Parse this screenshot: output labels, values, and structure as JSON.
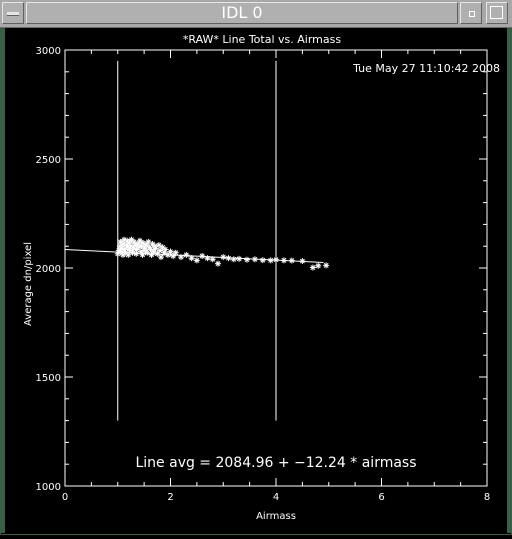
{
  "window": {
    "title": "IDL 0"
  },
  "chart_data": {
    "type": "scatter",
    "title": "*RAW* Line Total vs. Airmass",
    "timestamp": "Tue May 27 11:10:42 2008",
    "xlabel": "Airmass",
    "ylabel": "Average dn/pixel",
    "xlim": [
      0,
      8
    ],
    "ylim": [
      1000,
      3000
    ],
    "xticks": [
      "0",
      "2",
      "4",
      "6",
      "8"
    ],
    "yticks": [
      "1000",
      "1500",
      "2000",
      "2500",
      "3000"
    ],
    "vlines": [
      1.0,
      4.0
    ],
    "fit": {
      "intercept": 2084.96,
      "slope": -12.24,
      "x_range": [
        0,
        4.9
      ]
    },
    "fit_label": "Line avg = 2084.96 + −12.24 * airmass",
    "marker": "asterisk",
    "points": [
      [
        1.0,
        2065
      ],
      [
        1.02,
        2080
      ],
      [
        1.04,
        2100
      ],
      [
        1.05,
        2120
      ],
      [
        1.06,
        2075
      ],
      [
        1.08,
        2090
      ],
      [
        1.1,
        2110
      ],
      [
        1.1,
        2060
      ],
      [
        1.12,
        2130
      ],
      [
        1.13,
        2085
      ],
      [
        1.15,
        2070
      ],
      [
        1.16,
        2105
      ],
      [
        1.18,
        2125
      ],
      [
        1.19,
        2095
      ],
      [
        1.2,
        2060
      ],
      [
        1.22,
        2115
      ],
      [
        1.23,
        2080
      ],
      [
        1.25,
        2100
      ],
      [
        1.26,
        2130
      ],
      [
        1.28,
        2070
      ],
      [
        1.3,
        2090
      ],
      [
        1.31,
        2120
      ],
      [
        1.33,
        2105
      ],
      [
        1.35,
        2065
      ],
      [
        1.36,
        2085
      ],
      [
        1.38,
        2110
      ],
      [
        1.4,
        2095
      ],
      [
        1.42,
        2125
      ],
      [
        1.44,
        2075
      ],
      [
        1.45,
        2100
      ],
      [
        1.47,
        2060
      ],
      [
        1.48,
        2115
      ],
      [
        1.5,
        2090
      ],
      [
        1.52,
        2080
      ],
      [
        1.54,
        2105
      ],
      [
        1.56,
        2070
      ],
      [
        1.58,
        2120
      ],
      [
        1.6,
        2095
      ],
      [
        1.62,
        2085
      ],
      [
        1.64,
        2060
      ],
      [
        1.66,
        2110
      ],
      [
        1.68,
        2075
      ],
      [
        1.7,
        2100
      ],
      [
        1.72,
        2090
      ],
      [
        1.75,
        2065
      ],
      [
        1.78,
        2105
      ],
      [
        1.8,
        2080
      ],
      [
        1.82,
        2050
      ],
      [
        1.85,
        2095
      ],
      [
        1.88,
        2070
      ],
      [
        1.9,
        2085
      ],
      [
        1.95,
        2060
      ],
      [
        2.0,
        2075
      ],
      [
        2.05,
        2055
      ],
      [
        2.1,
        2070
      ],
      [
        2.2,
        2050
      ],
      [
        2.3,
        2060
      ],
      [
        2.4,
        2045
      ],
      [
        2.5,
        2035
      ],
      [
        2.6,
        2055
      ],
      [
        2.7,
        2045
      ],
      [
        2.8,
        2040
      ],
      [
        2.9,
        2020
      ],
      [
        3.0,
        2050
      ],
      [
        3.1,
        2045
      ],
      [
        3.2,
        2040
      ],
      [
        3.3,
        2042
      ],
      [
        3.45,
        2038
      ],
      [
        3.6,
        2040
      ],
      [
        3.75,
        2036
      ],
      [
        3.9,
        2035
      ],
      [
        4.0,
        2038
      ],
      [
        4.15,
        2035
      ],
      [
        4.3,
        2034
      ],
      [
        4.5,
        2032
      ],
      [
        4.7,
        2002
      ],
      [
        4.8,
        2010
      ],
      [
        4.95,
        2012
      ]
    ]
  }
}
